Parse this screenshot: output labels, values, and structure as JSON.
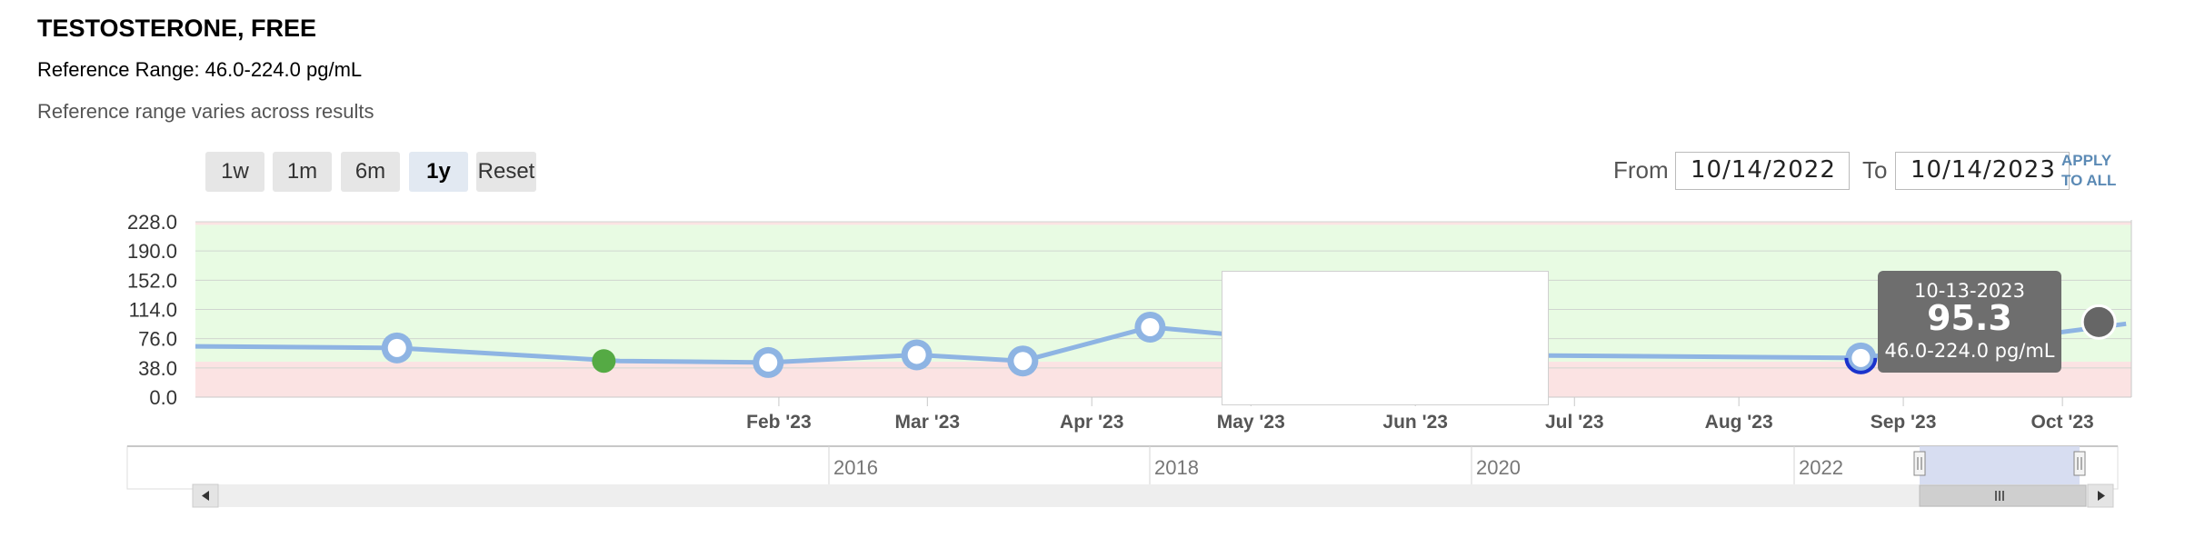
{
  "header": {
    "title": "TESTOSTERONE, FREE",
    "reference": "Reference Range: 46.0-224.0 pg/mL",
    "note": "Reference range varies across results"
  },
  "range_buttons": [
    {
      "label": "1w",
      "selected": false
    },
    {
      "label": "1m",
      "selected": false
    },
    {
      "label": "6m",
      "selected": false
    },
    {
      "label": "1y",
      "selected": true
    },
    {
      "label": "Reset",
      "selected": false
    }
  ],
  "date_filter": {
    "from_label": "From",
    "from_value": "10/14/2022",
    "to_label": "To",
    "to_value": "10/14/2023",
    "apply_label": "APPLY TO ALL",
    "apply_color": "#5b8ab5"
  },
  "tooltip": {
    "date": "10-13-2023",
    "value": "95.3",
    "range": "46.0-224.0 pg/mL"
  },
  "navigator": {
    "year_labels": [
      "2016",
      "2018",
      "2020",
      "2022"
    ],
    "left_arrow_icon": "left-arrow-icon",
    "right_arrow_icon": "right-arrow-icon",
    "grip_icon": "grip-icon"
  },
  "colors": {
    "line": "#8eb4e3",
    "normal_band": "#e8fbe3",
    "low_band": "#fbe3e3",
    "highlight_dot": "#55aa44",
    "selected_point": "#1a33cc",
    "tooltip_bg": "#6e6e6e",
    "navigator_window": "#d3d9ef"
  },
  "chart_data": {
    "type": "line",
    "y_ticks": [
      "228.0",
      "190.0",
      "152.0",
      "114.0",
      "76.0",
      "38.0",
      "0.0"
    ],
    "ylim": [
      0,
      228
    ],
    "x_ticks": [
      "Feb '23",
      "Mar '23",
      "Apr '23",
      "May '23",
      "Jun '23",
      "Jul '23",
      "Aug '23",
      "Sep '23",
      "Oct '23"
    ],
    "xlim": [
      "2022-10-14",
      "2023-10-14"
    ],
    "reference_range": [
      46.0,
      224.0
    ],
    "unit": "pg/mL",
    "grid": true,
    "series": [
      {
        "x": [
          "2022-10-14",
          "2022-11-21",
          "2023-01-02",
          "2023-01-30",
          "2023-02-27",
          "2023-03-19",
          "2023-04-12",
          "2023-06-08",
          "2023-08-24",
          "2023-10-13"
        ],
        "values": [
          66,
          64,
          47,
          45,
          55,
          47,
          91,
          55,
          51,
          95.3
        ],
        "markers": [
          false,
          true,
          false,
          true,
          true,
          true,
          true,
          true,
          true,
          false
        ]
      }
    ],
    "highlight_points": [
      {
        "x": "2022-12-30",
        "y": 47
      }
    ],
    "selected_point": {
      "x": "2023-08-24",
      "y": 51
    }
  }
}
